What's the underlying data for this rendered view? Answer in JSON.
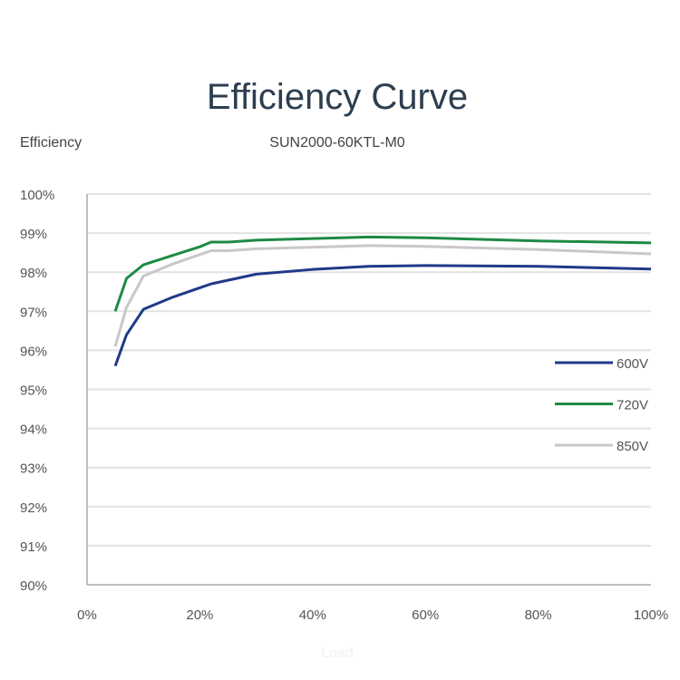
{
  "chart_data": {
    "type": "line",
    "title": "Efficiency Curve",
    "subtitle": "SUN2000-60KTL-M0",
    "ylabel": "Efficiency",
    "xlabel": "Load",
    "xlim": [
      0,
      100
    ],
    "ylim": [
      90,
      100
    ],
    "x_ticks": [
      "0%",
      "20%",
      "40%",
      "60%",
      "80%",
      "100%"
    ],
    "y_ticks": [
      "90%",
      "91%",
      "92%",
      "93%",
      "94%",
      "95%",
      "96%",
      "97%",
      "98%",
      "99%",
      "100%"
    ],
    "grid": true,
    "legend_position": "right",
    "series": [
      {
        "name": "600V",
        "color": "#1f3a8a",
        "x": [
          5,
          7,
          10,
          15,
          20,
          22,
          30,
          40,
          50,
          60,
          80,
          100
        ],
        "y": [
          95.6,
          96.4,
          97.05,
          97.35,
          97.6,
          97.7,
          97.95,
          98.07,
          98.15,
          98.17,
          98.15,
          98.08
        ]
      },
      {
        "name": "720V",
        "color": "#1e8a45",
        "x": [
          5,
          7,
          10,
          15,
          20,
          22,
          25,
          30,
          40,
          50,
          60,
          80,
          100
        ],
        "y": [
          97.0,
          97.84,
          98.19,
          98.42,
          98.65,
          98.77,
          98.77,
          98.82,
          98.86,
          98.9,
          98.88,
          98.8,
          98.75
        ]
      },
      {
        "name": "850V",
        "color": "#c8c8c8",
        "x": [
          5,
          7,
          10,
          15,
          20,
          22,
          25,
          30,
          50,
          60,
          80,
          100
        ],
        "y": [
          96.1,
          97.1,
          97.9,
          98.2,
          98.45,
          98.55,
          98.55,
          98.6,
          98.68,
          98.66,
          98.58,
          98.47
        ]
      }
    ]
  }
}
